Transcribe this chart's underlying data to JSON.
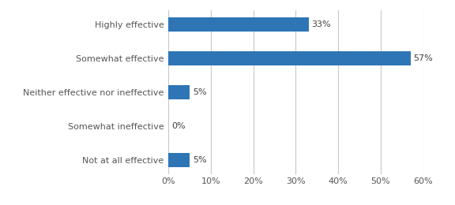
{
  "categories": [
    "Not at all effective",
    "Somewhat ineffective",
    "Neither effective nor ineffective",
    "Somewhat effective",
    "Highly effective"
  ],
  "values": [
    5,
    0,
    5,
    57,
    33
  ],
  "bar_color": "#2E75B6",
  "xlim": [
    0,
    60
  ],
  "xticks": [
    0,
    10,
    20,
    30,
    40,
    50,
    60
  ],
  "bar_height": 0.4,
  "label_fontsize": 8,
  "tick_fontsize": 8,
  "background_color": "#ffffff",
  "grid_color": "#c8c8c8"
}
